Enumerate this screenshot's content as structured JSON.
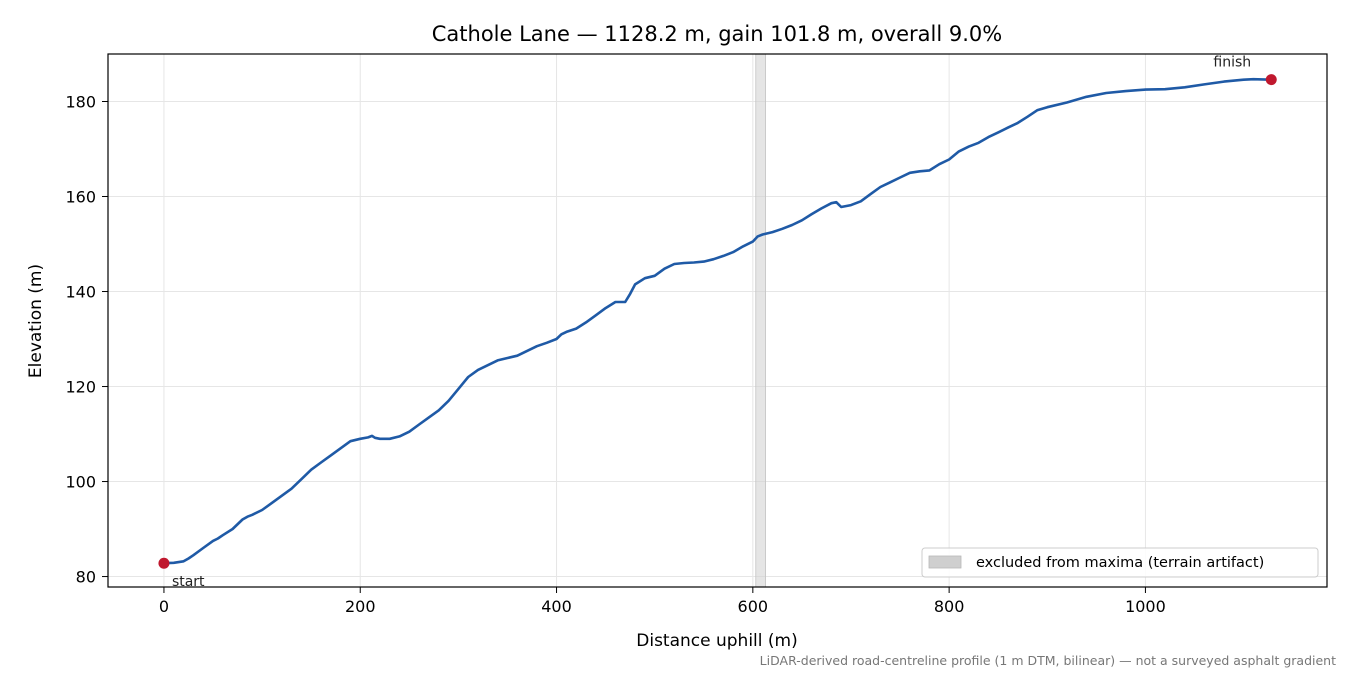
{
  "chart_data": {
    "type": "line",
    "title": "Cathole Lane — 1128.2 m, gain 101.8 m, overall 9.0%",
    "xlabel": "Distance uphill (m)",
    "ylabel": "Elevation (m)",
    "xlim": [
      -57,
      1185
    ],
    "ylim": [
      77.8,
      190
    ],
    "xticks": [
      0,
      200,
      400,
      600,
      800,
      1000
    ],
    "yticks": [
      80,
      100,
      120,
      140,
      160,
      180
    ],
    "grid": true,
    "series": [
      {
        "color": "#1f5aa6",
        "x": [
          0,
          10,
          20,
          25,
          30,
          40,
          50,
          55,
          60,
          70,
          80,
          85,
          90,
          100,
          110,
          120,
          130,
          140,
          150,
          160,
          170,
          180,
          190,
          200,
          208,
          212,
          215,
          220,
          230,
          240,
          250,
          260,
          270,
          280,
          290,
          300,
          310,
          320,
          330,
          340,
          350,
          360,
          370,
          380,
          390,
          400,
          405,
          410,
          420,
          430,
          440,
          450,
          460,
          470,
          475,
          480,
          490,
          500,
          510,
          520,
          530,
          540,
          550,
          560,
          570,
          580,
          590,
          600,
          605,
          610,
          620,
          630,
          640,
          650,
          660,
          670,
          680,
          685,
          690,
          700,
          710,
          720,
          730,
          740,
          750,
          760,
          770,
          780,
          790,
          800,
          810,
          820,
          830,
          840,
          850,
          860,
          870,
          880,
          890,
          900,
          920,
          940,
          960,
          980,
          1000,
          1020,
          1040,
          1060,
          1080,
          1100,
          1110,
          1128
        ],
        "y": [
          82.8,
          82.9,
          83.2,
          83.8,
          84.5,
          86.0,
          87.5,
          88.0,
          88.7,
          90.0,
          92.0,
          92.6,
          93.0,
          94.0,
          95.5,
          97.0,
          98.5,
          100.5,
          102.5,
          104.0,
          105.5,
          107.0,
          108.5,
          109.0,
          109.3,
          109.6,
          109.2,
          109.0,
          109.0,
          109.5,
          110.5,
          112.0,
          113.5,
          115.0,
          117.0,
          119.5,
          122.0,
          123.5,
          124.5,
          125.5,
          126.0,
          126.5,
          127.5,
          128.5,
          129.2,
          130.0,
          131.0,
          131.5,
          132.2,
          133.5,
          135.0,
          136.5,
          137.8,
          137.8,
          139.5,
          141.5,
          142.8,
          143.3,
          144.8,
          145.8,
          146.0,
          146.1,
          146.3,
          146.8,
          147.5,
          148.3,
          149.5,
          150.5,
          151.6,
          152.0,
          152.5,
          153.2,
          154.0,
          155.0,
          156.3,
          157.5,
          158.6,
          158.8,
          157.8,
          158.2,
          159.0,
          160.5,
          162.0,
          163.0,
          164.0,
          165.0,
          165.3,
          165.5,
          166.8,
          167.8,
          169.5,
          170.5,
          171.3,
          172.5,
          173.5,
          174.5,
          175.5,
          176.8,
          178.2,
          178.8,
          179.8,
          181.0,
          181.8,
          182.2,
          182.5,
          182.6,
          183.0,
          183.6,
          184.2,
          184.6,
          184.7,
          184.6
        ]
      }
    ],
    "markers": [
      {
        "x": 0,
        "y": 82.8,
        "label": "start",
        "color": "#c0182e"
      },
      {
        "x": 1128.2,
        "y": 184.6,
        "label": "finish",
        "color": "#c0182e"
      }
    ],
    "excluded_band": {
      "x_from": 603,
      "x_to": 613,
      "color": "#cfcfcf"
    },
    "legend": {
      "position": "bottom-right",
      "label": "excluded from maxima (terrain artifact)"
    },
    "footnote": "LiDAR-derived road-centreline profile (1 m DTM, bilinear) — not a surveyed asphalt gradient"
  }
}
